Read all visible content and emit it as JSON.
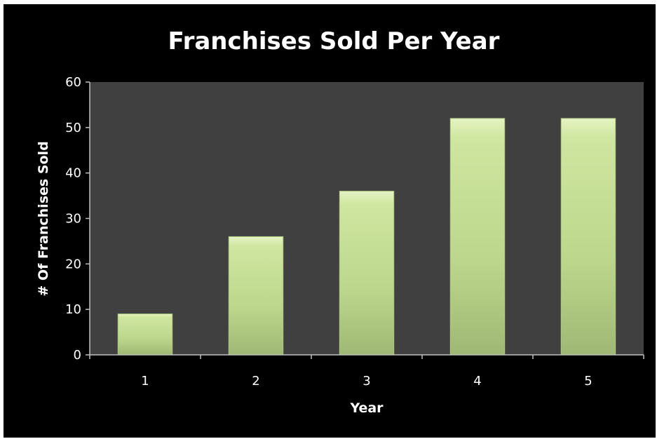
{
  "chart_data": {
    "type": "bar",
    "title": "Franchises Sold Per Year",
    "xlabel": "Year",
    "ylabel": "# Of Franchises Sold",
    "categories": [
      "1",
      "2",
      "3",
      "4",
      "5"
    ],
    "values": [
      9,
      26,
      36,
      52,
      52
    ],
    "ylim": [
      0,
      60
    ],
    "yticks": [
      0,
      10,
      20,
      30,
      40,
      50,
      60
    ],
    "grid": false,
    "legend": "none",
    "colors": {
      "background": "#000000",
      "plot_area": "#404040",
      "bar_light": "#d6ebaa",
      "bar_mid": "#c0dc8e",
      "bar_dark": "#93ad66",
      "axis": "#bfbfbf",
      "text": "#ffffff"
    }
  }
}
